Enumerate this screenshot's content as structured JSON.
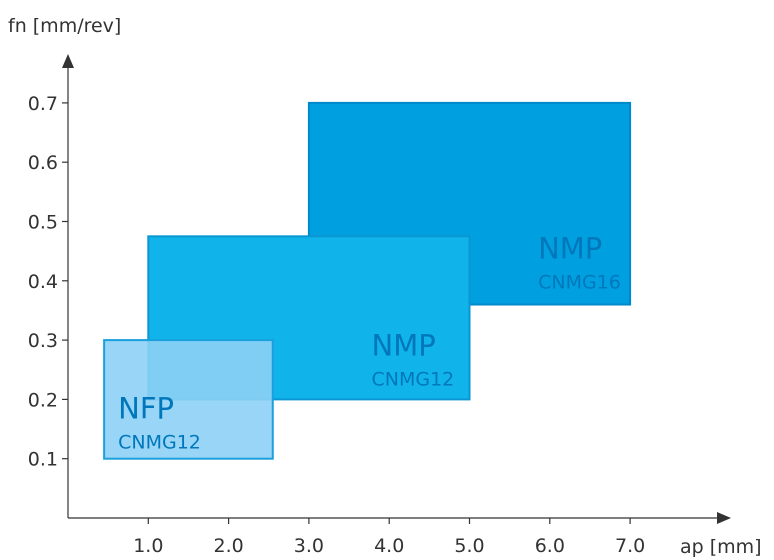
{
  "chart_data": {
    "type": "area",
    "xlabel": "ap [mm]",
    "ylabel": "fn [mm/rev]",
    "xlim": [
      0.0,
      7.0
    ],
    "ylim": [
      0.0,
      0.7
    ],
    "x_ticks": [
      "1.0",
      "2.0",
      "3.0",
      "4.0",
      "5.0",
      "6.0",
      "7.0"
    ],
    "y_ticks": [
      "0.1",
      "0.2",
      "0.3",
      "0.4",
      "0.5",
      "0.6",
      "0.7"
    ],
    "grid": false,
    "series": [
      {
        "name": "NMP",
        "subtitle": "CNMG16",
        "ap_range": [
          3.0,
          7.0
        ],
        "fn_range": [
          0.36,
          0.7
        ],
        "fill": "#00a0e0",
        "stroke": "#0088cc",
        "label_color": "#0077bb"
      },
      {
        "name": "NMP",
        "subtitle": "CNMG12",
        "ap_range": [
          1.0,
          5.0
        ],
        "fn_range": [
          0.2,
          0.475
        ],
        "fill": "#10b4ea",
        "stroke": "#0a96d2",
        "label_color": "#0077bb"
      },
      {
        "name": "NFP",
        "subtitle": "CNMG12",
        "ap_range": [
          0.45,
          2.55
        ],
        "fn_range": [
          0.1,
          0.3
        ],
        "fill": "#8dd0f5",
        "stroke": "#1aa0dc",
        "label_color": "#0077bb"
      }
    ],
    "colors": {
      "axis": "#333333",
      "text": "#333333"
    }
  }
}
